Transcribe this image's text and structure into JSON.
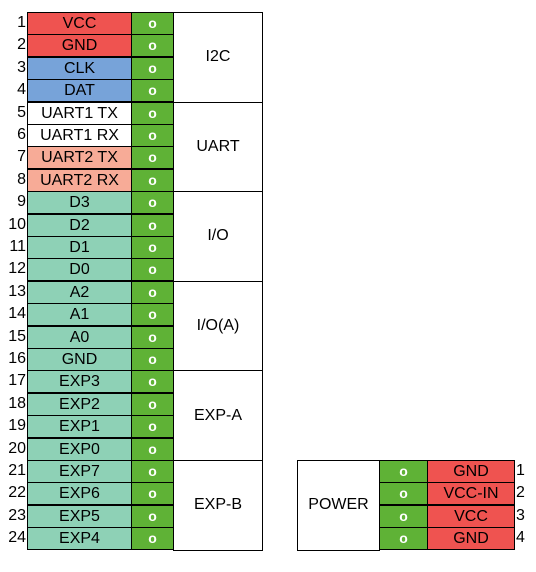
{
  "colors": {
    "red": "#ef5350",
    "blue": "#77a3d9",
    "salmon": "#f7ab97",
    "teal": "#8ed1b6",
    "white": "#ffffff",
    "pin_green": "#5fb236"
  },
  "pin_marker": "o",
  "main_header": {
    "pins": [
      {
        "num": "1",
        "label": "VCC",
        "color": "red"
      },
      {
        "num": "2",
        "label": "GND",
        "color": "red"
      },
      {
        "num": "3",
        "label": "CLK",
        "color": "blue"
      },
      {
        "num": "4",
        "label": "DAT",
        "color": "blue"
      },
      {
        "num": "5",
        "label": "UART1 TX",
        "color": "white"
      },
      {
        "num": "6",
        "label": "UART1 RX",
        "color": "white"
      },
      {
        "num": "7",
        "label": "UART2 TX",
        "color": "salmon"
      },
      {
        "num": "8",
        "label": "UART2 RX",
        "color": "salmon"
      },
      {
        "num": "9",
        "label": "D3",
        "color": "teal"
      },
      {
        "num": "10",
        "label": "D2",
        "color": "teal"
      },
      {
        "num": "11",
        "label": "D1",
        "color": "teal"
      },
      {
        "num": "12",
        "label": "D0",
        "color": "teal"
      },
      {
        "num": "13",
        "label": "A2",
        "color": "teal"
      },
      {
        "num": "14",
        "label": "A1",
        "color": "teal"
      },
      {
        "num": "15",
        "label": "A0",
        "color": "teal"
      },
      {
        "num": "16",
        "label": "GND",
        "color": "teal"
      },
      {
        "num": "17",
        "label": "EXP3",
        "color": "teal"
      },
      {
        "num": "18",
        "label": "EXP2",
        "color": "teal"
      },
      {
        "num": "19",
        "label": "EXP1",
        "color": "teal"
      },
      {
        "num": "20",
        "label": "EXP0",
        "color": "teal"
      },
      {
        "num": "21",
        "label": "EXP7",
        "color": "teal"
      },
      {
        "num": "22",
        "label": "EXP6",
        "color": "teal"
      },
      {
        "num": "23",
        "label": "EXP5",
        "color": "teal"
      },
      {
        "num": "24",
        "label": "EXP4",
        "color": "teal"
      }
    ],
    "groups": [
      {
        "label": "I2C",
        "first_pin": 1,
        "pin_count": 4
      },
      {
        "label": "UART",
        "first_pin": 5,
        "pin_count": 4
      },
      {
        "label": "I/O",
        "first_pin": 9,
        "pin_count": 4
      },
      {
        "label": "I/O(A)",
        "first_pin": 13,
        "pin_count": 4
      },
      {
        "label": "EXP-A",
        "first_pin": 17,
        "pin_count": 4
      },
      {
        "label": "EXP-B",
        "first_pin": 21,
        "pin_count": 4
      }
    ]
  },
  "power_header": {
    "group_label": "POWER",
    "pins": [
      {
        "num": "1",
        "label": "GND",
        "color": "red"
      },
      {
        "num": "2",
        "label": "VCC-IN",
        "color": "red"
      },
      {
        "num": "3",
        "label": "VCC",
        "color": "red"
      },
      {
        "num": "4",
        "label": "GND",
        "color": "red"
      }
    ]
  }
}
